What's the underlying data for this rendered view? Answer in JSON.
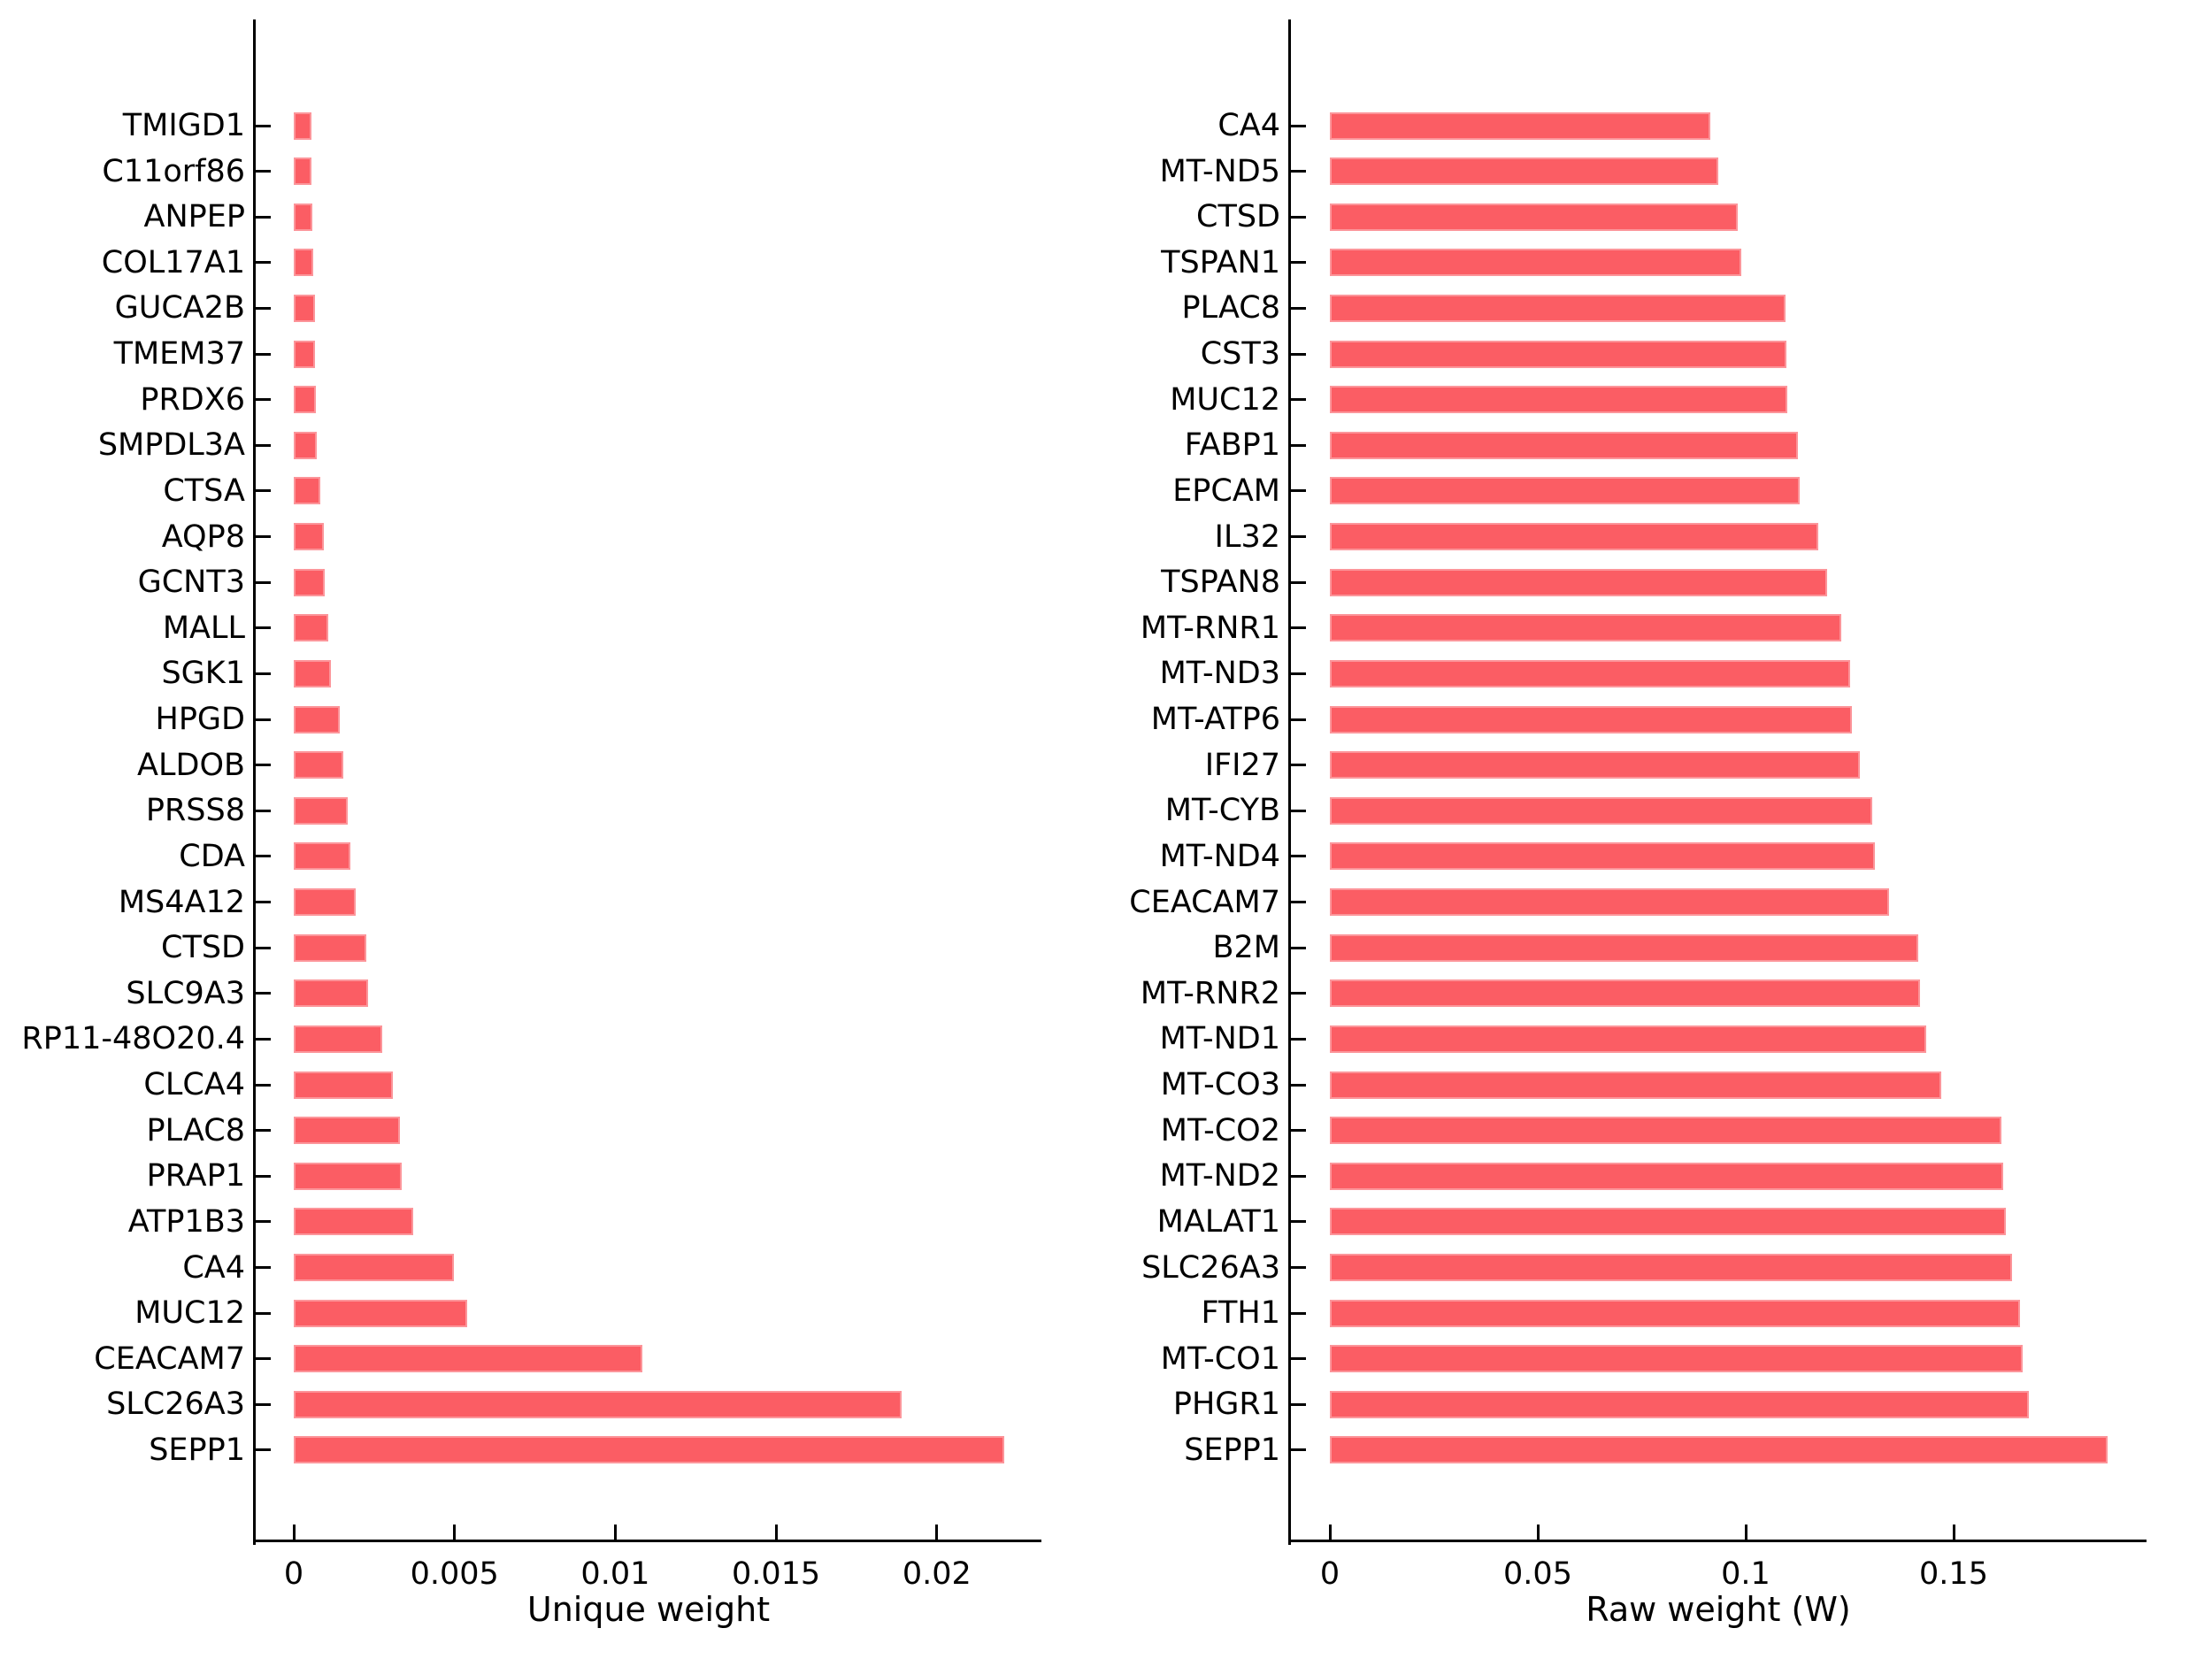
{
  "colors": {
    "bar": "#fb5d64",
    "axis": "#000000",
    "text": "#000000",
    "background": "#ffffff"
  },
  "chart_data": [
    {
      "type": "bar",
      "orientation": "horizontal",
      "title": "",
      "xlabel": "Unique weight",
      "ylabel": "",
      "grid": false,
      "legend": null,
      "xlim": [
        -0.0012,
        0.0233
      ],
      "xticks": {
        "values": [
          0,
          0.005,
          0.01,
          0.015,
          0.02
        ],
        "labels": [
          "0",
          "0.005",
          "0.01",
          "0.015",
          "0.02"
        ]
      },
      "categories": [
        "TMIGD1",
        "C11orf86",
        "ANPEP",
        "COL17A1",
        "GUCA2B",
        "TMEM37",
        "PRDX6",
        "SMPDL3A",
        "CTSA",
        "AQP8",
        "GCNT3",
        "MALL",
        "SGK1",
        "HPGD",
        "ALDOB",
        "PRSS8",
        "CDA",
        "MS4A12",
        "CTSD",
        "SLC9A3",
        "RP11-48O20.4",
        "CLCA4",
        "PLAC8",
        "PRAP1",
        "ATP1B3",
        "CA4",
        "MUC12",
        "CEACAM7",
        "SLC26A3",
        "SEPP1"
      ],
      "values": [
        0.00055,
        0.00056,
        0.00058,
        0.0006,
        0.00066,
        0.00067,
        0.0007,
        0.00072,
        0.00083,
        0.00094,
        0.00097,
        0.00107,
        0.00116,
        0.00144,
        0.00154,
        0.00169,
        0.00176,
        0.00194,
        0.00227,
        0.00231,
        0.00276,
        0.00309,
        0.00329,
        0.00337,
        0.00372,
        0.00498,
        0.00538,
        0.01084,
        0.0189,
        0.0221
      ]
    },
    {
      "type": "bar",
      "orientation": "horizontal",
      "title": "",
      "xlabel": "Raw weight (W)",
      "ylabel": "",
      "grid": false,
      "legend": null,
      "xlim": [
        -0.0097,
        0.1965
      ],
      "xticks": {
        "values": [
          0,
          0.05,
          0.1,
          0.15
        ],
        "labels": [
          "0",
          "0.05",
          "0.1",
          "0.15"
        ]
      },
      "categories": [
        "CA4",
        "MT-ND5",
        "CTSD",
        "TSPAN1",
        "PLAC8",
        "CST3",
        "MUC12",
        "FABP1",
        "EPCAM",
        "IL32",
        "TSPAN8",
        "MT-RNR1",
        "MT-ND3",
        "MT-ATP6",
        "IFI27",
        "MT-CYB",
        "MT-ND4",
        "CEACAM7",
        "B2M",
        "MT-RNR2",
        "MT-ND1",
        "MT-CO3",
        "MT-CO2",
        "MT-ND2",
        "MALAT1",
        "SLC26A3",
        "FTH1",
        "MT-CO1",
        "PHGR1",
        "SEPP1"
      ],
      "values": [
        0.0915,
        0.0935,
        0.098,
        0.099,
        0.1095,
        0.1098,
        0.11,
        0.1125,
        0.113,
        0.1175,
        0.1195,
        0.123,
        0.125,
        0.1255,
        0.1275,
        0.1305,
        0.131,
        0.1345,
        0.1415,
        0.142,
        0.1435,
        0.147,
        0.1615,
        0.162,
        0.1625,
        0.164,
        0.166,
        0.1665,
        0.168,
        0.187
      ]
    }
  ]
}
